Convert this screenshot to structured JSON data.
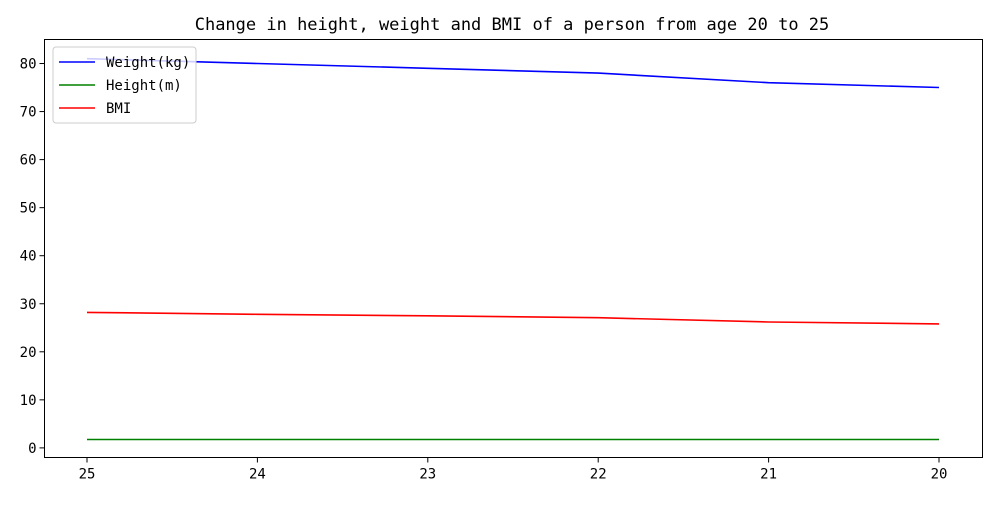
{
  "chart_data": {
    "type": "line",
    "title": "Change in height, weight and BMI of a person from age 20 to 25",
    "xlabel": "",
    "ylabel": "",
    "categories": [
      "25",
      "24",
      "23",
      "22",
      "21",
      "20"
    ],
    "x_tick_labels": [
      "25",
      "24",
      "23",
      "22",
      "21",
      "20"
    ],
    "y_tick_labels": [
      "0",
      "10",
      "20",
      "30",
      "40",
      "50",
      "60",
      "70",
      "80"
    ],
    "y_ticks": [
      0,
      10,
      20,
      30,
      40,
      50,
      60,
      70,
      80
    ],
    "ylim": [
      -2,
      85
    ],
    "grid": false,
    "legend_position": "upper-left",
    "series": [
      {
        "name": "Weight(kg)",
        "color": "#0000ff",
        "values": [
          81,
          80,
          79,
          78,
          76,
          75
        ]
      },
      {
        "name": "Height(m)",
        "color": "#008000",
        "values": [
          1.75,
          1.75,
          1.75,
          1.75,
          1.75,
          1.75
        ]
      },
      {
        "name": "BMI",
        "color": "#ff0000",
        "values": [
          28.2,
          27.8,
          27.5,
          27.1,
          26.2,
          25.8
        ]
      }
    ]
  }
}
